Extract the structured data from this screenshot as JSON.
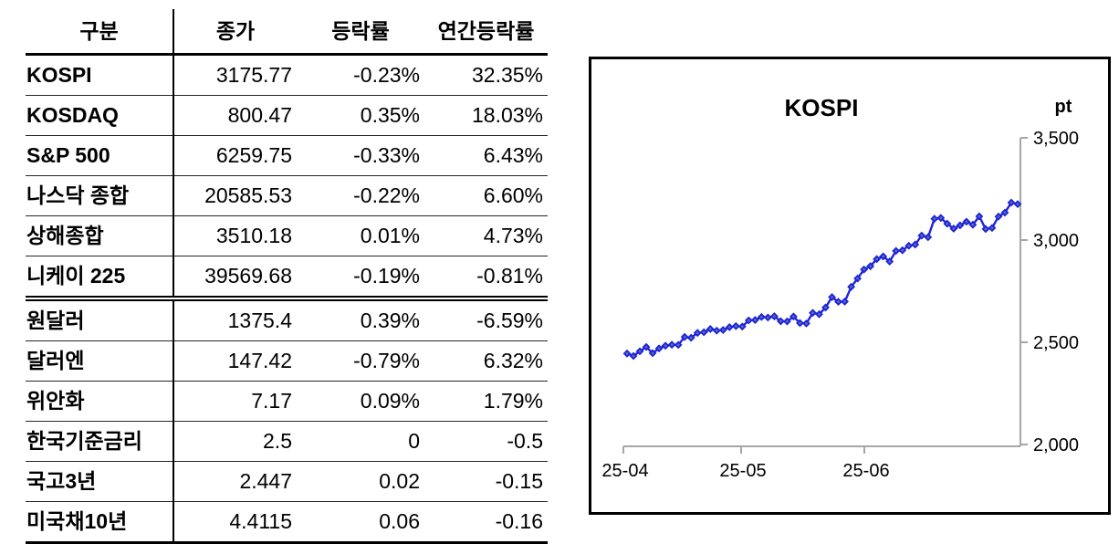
{
  "table": {
    "headers": [
      "구분",
      "종가",
      "등락률",
      "연간등락률"
    ],
    "market_rows": [
      {
        "label": "KOSPI",
        "close": "3175.77",
        "change": "-0.23%",
        "ytd": "32.35%"
      },
      {
        "label": "KOSDAQ",
        "close": "800.47",
        "change": "0.35%",
        "ytd": "18.03%"
      },
      {
        "label": "S&P 500",
        "close": "6259.75",
        "change": "-0.33%",
        "ytd": "6.43%"
      },
      {
        "label": "나스닥 종합",
        "close": "20585.53",
        "change": "-0.22%",
        "ytd": "6.60%"
      },
      {
        "label": "상해종합",
        "close": "3510.18",
        "change": "0.01%",
        "ytd": "4.73%"
      },
      {
        "label": "니케이 225",
        "close": "39569.68",
        "change": "-0.19%",
        "ytd": "-0.81%"
      }
    ],
    "macro_rows": [
      {
        "label": "원달러",
        "close": "1375.4",
        "change": "0.39%",
        "ytd": "-6.59%"
      },
      {
        "label": "달러엔",
        "close": "147.42",
        "change": "-0.79%",
        "ytd": "6.32%"
      },
      {
        "label": "위안화",
        "close": "7.17",
        "change": "0.09%",
        "ytd": "1.79%"
      },
      {
        "label": "한국기준금리",
        "close": "2.5",
        "change": "0",
        "ytd": "-0.5"
      },
      {
        "label": "국고3년",
        "close": "2.447",
        "change": "0.02",
        "ytd": "-0.15"
      },
      {
        "label": "미국채10년",
        "close": "4.4115",
        "change": "0.06",
        "ytd": "-0.16"
      }
    ]
  },
  "chart_data": {
    "type": "line",
    "title": "KOSPI",
    "unit_label": "pt",
    "x_ticks": [
      "25-04",
      "25-05",
      "25-06"
    ],
    "y_ticks": [
      "3,500",
      "3,000",
      "2,500",
      "2,000"
    ],
    "ylim": [
      2000,
      3500
    ],
    "grid": false,
    "legend": "none",
    "line_color": "#2121DC",
    "marker_center_color": "#4E7CA6",
    "axis_color": "#A6A6A6",
    "series": [
      {
        "name": "KOSPI",
        "values": [
          2445,
          2433,
          2456,
          2477,
          2447,
          2470,
          2483,
          2488,
          2487,
          2526,
          2522,
          2546,
          2549,
          2565,
          2557,
          2560,
          2574,
          2579,
          2577,
          2607,
          2609,
          2624,
          2621,
          2627,
          2603,
          2602,
          2626,
          2594,
          2592,
          2644,
          2637,
          2670,
          2721,
          2698,
          2699,
          2771,
          2812,
          2856,
          2872,
          2907,
          2920,
          2895,
          2947,
          2950,
          2972,
          2978,
          3022,
          3014,
          3104,
          3108,
          3080,
          3056,
          3072,
          3090,
          3075,
          3116,
          3054,
          3059,
          3115,
          3134,
          3183,
          3175.77
        ]
      }
    ]
  }
}
